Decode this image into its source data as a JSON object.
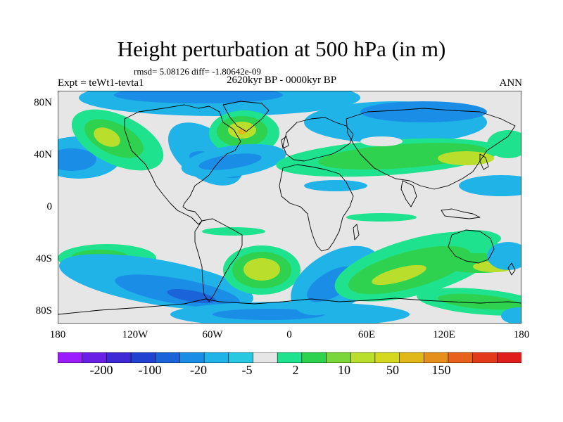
{
  "title": "Height perturbation at 500 hPa (in m)",
  "stats": "rmsd= 5.08126 diff= -1.80642e-09",
  "experiment": "Expt = teWt1-tevta1",
  "period": "2620kyr BP - 0000kyr BP",
  "season": "ANN",
  "axes": {
    "x_ticks": [
      "180",
      "120W",
      "60W",
      "0",
      "60E",
      "120E",
      "180"
    ],
    "y_ticks": [
      "80N",
      "40N",
      "0",
      "40S",
      "80S"
    ]
  },
  "colorbar": {
    "labels": [
      "-200",
      "-100",
      "-20",
      "-5",
      "2",
      "10",
      "50",
      "150"
    ],
    "colors": [
      "#9b1dff",
      "#6a1fe6",
      "#3d2ad6",
      "#2141d0",
      "#1b63d9",
      "#1a8ee6",
      "#20b3e8",
      "#28c8e3",
      "#e6e6e6",
      "#1fe28f",
      "#2ed24e",
      "#7ad63a",
      "#b9df2c",
      "#d4d81e",
      "#e0b81a",
      "#e5901a",
      "#e8621b",
      "#e43a1c",
      "#e01f1c"
    ]
  },
  "colors": {
    "background_land": "#e6e6e6",
    "coastline": "#000000"
  }
}
